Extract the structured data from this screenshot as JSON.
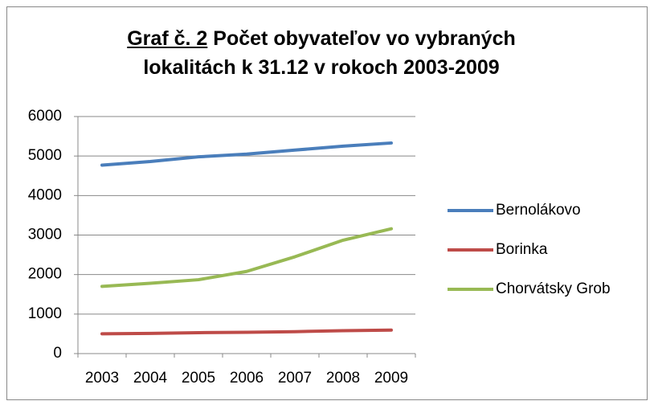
{
  "chart_data": {
    "type": "line",
    "title": {
      "label": "Graf č. 2",
      "text": "Počet obyvateľov vo vybraných lokalitách k 31.12 v rokoch 2003-2009"
    },
    "categories": [
      "2003",
      "2004",
      "2005",
      "2006",
      "2007",
      "2008",
      "2009"
    ],
    "series": [
      {
        "name": "Bernolákovo",
        "color": "#4a7ebb",
        "values": [
          4770,
          4860,
          4980,
          5050,
          5150,
          5250,
          5330
        ]
      },
      {
        "name": "Borinka",
        "color": "#be4b48",
        "values": [
          500,
          510,
          530,
          540,
          555,
          580,
          595
        ]
      },
      {
        "name": "Chorvátsky Grob",
        "color": "#98b954",
        "values": [
          1700,
          1780,
          1870,
          2080,
          2450,
          2870,
          3160
        ]
      }
    ],
    "ylim": [
      0,
      6000
    ],
    "yticks": [
      0,
      1000,
      2000,
      3000,
      4000,
      5000,
      6000
    ],
    "grid": true,
    "legend": "right"
  }
}
